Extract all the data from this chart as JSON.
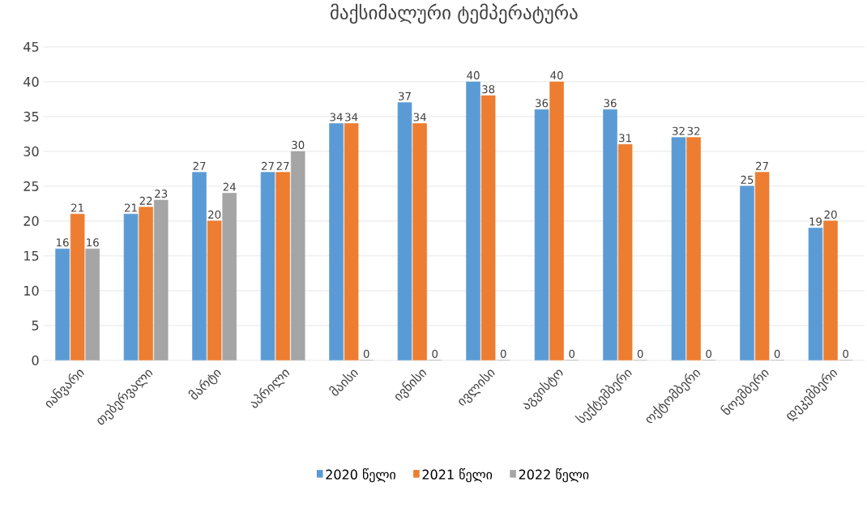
{
  "chart_data": {
    "type": "bar",
    "title": "მაქსიმალური ტემპერატურა",
    "categories": [
      "იანვარი",
      "თებერვალი",
      "მარტი",
      "აპრილი",
      "მაისი",
      "ივნისი",
      "ივლისი",
      "აგვისტო",
      "სექტემბერი",
      "ოქტომბერი",
      "ნოემბერი",
      "დეკემბერი"
    ],
    "series": [
      {
        "name": "2020 წელი",
        "color": "#5b9bd5",
        "values": [
          16,
          21,
          27,
          27,
          34,
          37,
          40,
          36,
          36,
          32,
          25,
          19
        ]
      },
      {
        "name": "2021 წელი",
        "color": "#ed7d31",
        "values": [
          21,
          22,
          20,
          27,
          34,
          34,
          38,
          40,
          31,
          32,
          27,
          20
        ]
      },
      {
        "name": "2022 წელი",
        "color": "#a5a5a5",
        "values": [
          16,
          23,
          24,
          30,
          0,
          0,
          0,
          0,
          0,
          0,
          0,
          0
        ]
      }
    ],
    "ylim": [
      0,
      45
    ],
    "yticks": [
      0,
      5,
      10,
      15,
      20,
      25,
      30,
      35,
      40,
      45
    ],
    "grid": "y",
    "legend": "bottom",
    "data_labels": true
  }
}
